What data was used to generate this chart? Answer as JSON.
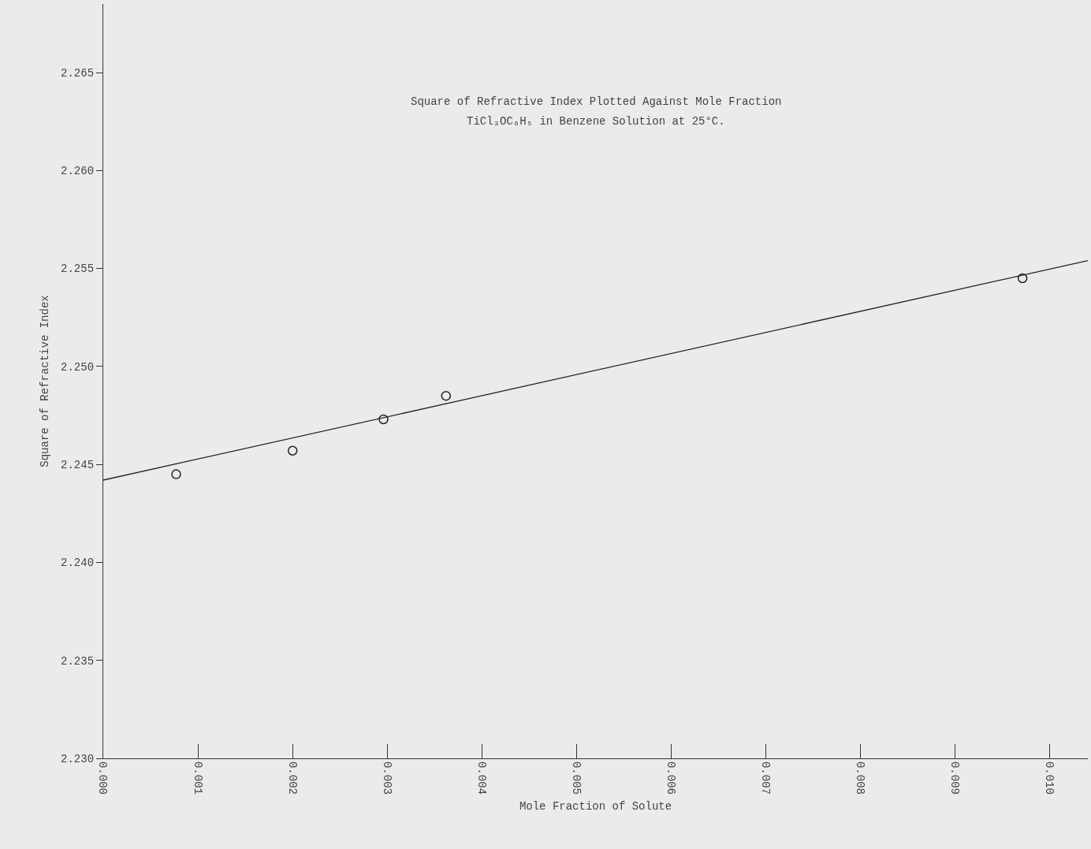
{
  "chart_data": {
    "type": "scatter",
    "title": "Square of Refractive Index Plotted Against Mole Fraction",
    "subtitle": "TiCl₃OC₆H₅ in Benzene Solution at 25°C.",
    "xlabel": "Mole Fraction of Solute",
    "ylabel": "Square of Refractive Index",
    "series": [
      {
        "color": "#222222",
        "x": [
          0.00077,
          0.002,
          0.00296,
          0.00362,
          0.00971
        ],
        "values": [
          2.2445,
          2.2457,
          2.2473,
          2.2485,
          2.2545
        ]
      },
      {
        "type": "line",
        "marker": "none",
        "color": "#222222",
        "x": [
          0,
          0.0104
        ],
        "values": [
          2.2442,
          2.2554
        ]
      }
    ],
    "marker": "circle",
    "line_style": "solid",
    "grid": false,
    "legend": false,
    "xlim": [
      0,
      0.0104
    ],
    "ylim": [
      2.23,
      2.2685
    ],
    "xticks": [
      {
        "value": 0,
        "label": "0.000"
      },
      {
        "value": 0.001,
        "label": "0.001"
      },
      {
        "value": 0.002,
        "label": "0.002"
      },
      {
        "value": 0.003,
        "label": "0.003"
      },
      {
        "value": 0.004,
        "label": "0.004"
      },
      {
        "value": 0.005,
        "label": "0.005"
      },
      {
        "value": 0.006,
        "label": "0.006"
      },
      {
        "value": 0.007,
        "label": "0.007"
      },
      {
        "value": 0.008,
        "label": "0.008"
      },
      {
        "value": 0.009,
        "label": "0.009"
      },
      {
        "value": 0.01,
        "label": "0.010"
      }
    ],
    "yticks": [
      {
        "value": 2.23,
        "label": "2.230"
      },
      {
        "value": 2.235,
        "label": "2.235"
      },
      {
        "value": 2.24,
        "label": "2.240"
      },
      {
        "value": 2.245,
        "label": "2.245"
      },
      {
        "value": 2.25,
        "label": "2.250"
      },
      {
        "value": 2.255,
        "label": "2.255"
      },
      {
        "value": 2.26,
        "label": "2.260"
      },
      {
        "value": 2.265,
        "label": "2.265"
      }
    ]
  }
}
